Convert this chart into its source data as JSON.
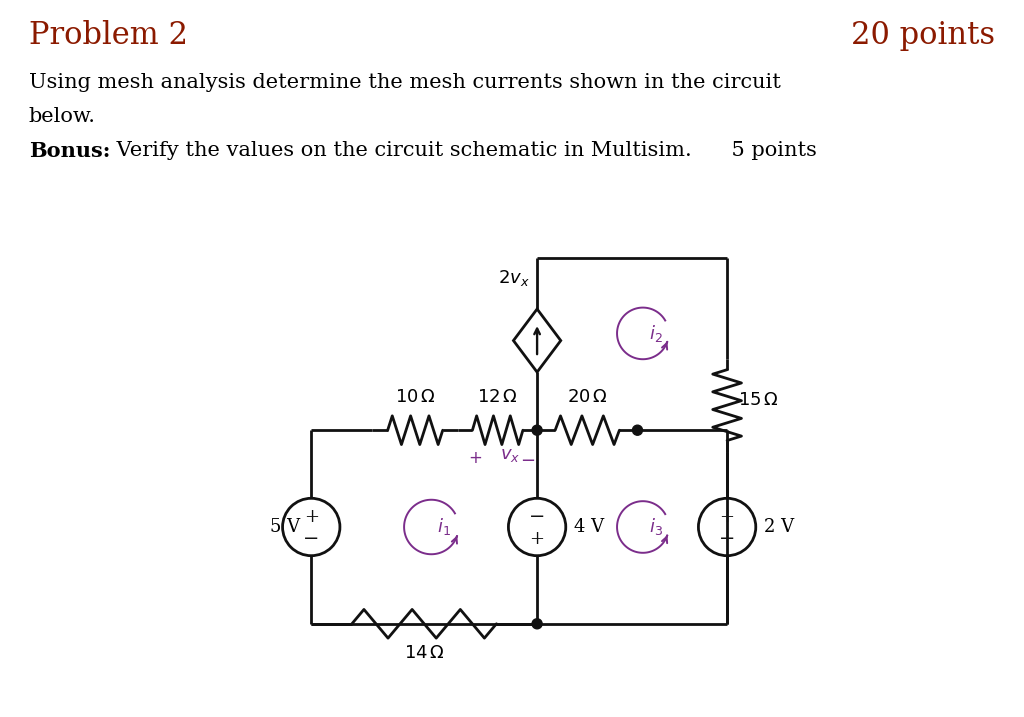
{
  "title_left": "Problem 2",
  "title_right": "20 points",
  "title_color": "#8B1A00",
  "body_text1": "Using mesh analysis determine the mesh currents shown in the circuit",
  "body_text2": "below.",
  "bonus_bold": "Bonus:",
  "bonus_rest": " Verify the values on the circuit schematic in Multisim.      5 points",
  "bg_color": "#ffffff",
  "wire_color": "#111111",
  "mesh_color": "#7B2D8B",
  "lw": 2.0,
  "xl": 2.2,
  "xm1": 3.05,
  "xm2": 4.25,
  "xm3": 5.35,
  "xm4": 6.75,
  "xr": 8.0,
  "ybot": 1.3,
  "ymid": 4.0,
  "ytop": 6.4,
  "source_r": 0.4,
  "diamond_size": 0.44,
  "node_r": 0.07
}
